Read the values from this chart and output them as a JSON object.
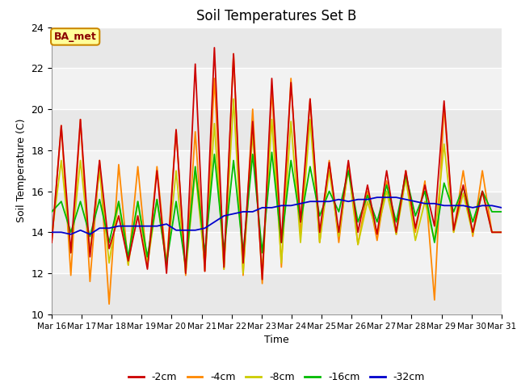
{
  "title": "Soil Temperatures Set B",
  "xlabel": "Time",
  "ylabel": "Soil Temperature (C)",
  "ylim": [
    10,
    24
  ],
  "yticks": [
    10,
    12,
    14,
    16,
    18,
    20,
    22,
    24
  ],
  "x_labels": [
    "Mar 16",
    "Mar 17",
    "Mar 18",
    "Mar 19",
    "Mar 20",
    "Mar 21",
    "Mar 22",
    "Mar 23",
    "Mar 24",
    "Mar 25",
    "Mar 26",
    "Mar 27",
    "Mar 28",
    "Mar 29",
    "Mar 30",
    "Mar 31"
  ],
  "legend_colors": [
    "#cc0000",
    "#ff8800",
    "#cccc00",
    "#00bb00",
    "#0000cc"
  ],
  "annotation_text": "BA_met",
  "annotation_bg": "#ffff99",
  "annotation_border": "#cc8800",
  "series_4cm": [
    13.5,
    19.2,
    11.9,
    19.5,
    11.6,
    17.5,
    10.5,
    17.3,
    12.4,
    17.2,
    12.3,
    17.2,
    12.4,
    19.0,
    11.9,
    18.9,
    12.1,
    21.5,
    12.2,
    22.7,
    11.9,
    20.0,
    11.5,
    21.0,
    12.3,
    21.5,
    13.8,
    20.5,
    13.5,
    17.5,
    13.5,
    17.4,
    13.4,
    16.0,
    13.6,
    16.5,
    13.9,
    17.0,
    14.0,
    16.5,
    10.7,
    20.2,
    14.0,
    17.0,
    13.8,
    17.0,
    14.0,
    14.0
  ],
  "series_8cm": [
    13.8,
    17.5,
    13.0,
    17.5,
    13.1,
    17.0,
    12.5,
    15.5,
    12.4,
    15.5,
    12.4,
    15.6,
    12.4,
    17.0,
    12.0,
    17.0,
    12.4,
    19.3,
    12.2,
    20.5,
    12.0,
    18.8,
    12.1,
    19.5,
    12.5,
    19.4,
    13.5,
    19.5,
    13.5,
    17.0,
    13.8,
    17.1,
    13.4,
    15.5,
    14.0,
    16.0,
    13.9,
    16.6,
    13.6,
    15.5,
    13.6,
    18.3,
    14.0,
    15.9,
    13.9,
    16.0,
    14.0,
    14.0
  ],
  "series_2cm": [
    13.5,
    19.2,
    13.0,
    19.5,
    12.8,
    17.5,
    13.2,
    14.8,
    12.6,
    14.8,
    12.2,
    17.0,
    12.0,
    19.0,
    12.0,
    22.2,
    12.1,
    23.0,
    12.3,
    22.7,
    12.5,
    19.4,
    11.7,
    21.5,
    13.5,
    21.3,
    14.5,
    20.5,
    14.0,
    17.4,
    14.0,
    17.5,
    14.0,
    16.3,
    13.9,
    17.0,
    14.0,
    17.0,
    14.2,
    16.3,
    14.3,
    20.4,
    14.1,
    16.3,
    14.0,
    16.0,
    14.0,
    14.0
  ],
  "series_16cm": [
    15.0,
    15.5,
    14.0,
    15.5,
    13.8,
    15.6,
    13.5,
    15.5,
    12.8,
    15.5,
    12.8,
    15.6,
    12.5,
    15.5,
    12.3,
    17.2,
    13.0,
    17.8,
    13.1,
    17.5,
    13.0,
    17.8,
    13.0,
    17.9,
    13.5,
    17.5,
    14.5,
    17.2,
    14.8,
    16.0,
    15.0,
    17.0,
    14.5,
    15.8,
    14.5,
    16.3,
    14.5,
    16.8,
    14.8,
    16.0,
    13.5,
    16.4,
    15.0,
    16.2,
    14.5,
    16.0,
    15.0,
    15.0
  ],
  "series_32cm": [
    14.0,
    14.0,
    13.9,
    14.1,
    13.9,
    14.2,
    14.2,
    14.3,
    14.3,
    14.3,
    14.3,
    14.3,
    14.4,
    14.1,
    14.1,
    14.1,
    14.2,
    14.5,
    14.8,
    14.9,
    15.0,
    15.0,
    15.2,
    15.2,
    15.3,
    15.3,
    15.4,
    15.5,
    15.5,
    15.5,
    15.6,
    15.5,
    15.6,
    15.6,
    15.7,
    15.7,
    15.7,
    15.6,
    15.5,
    15.4,
    15.4,
    15.3,
    15.3,
    15.3,
    15.2,
    15.3,
    15.3,
    15.2
  ]
}
